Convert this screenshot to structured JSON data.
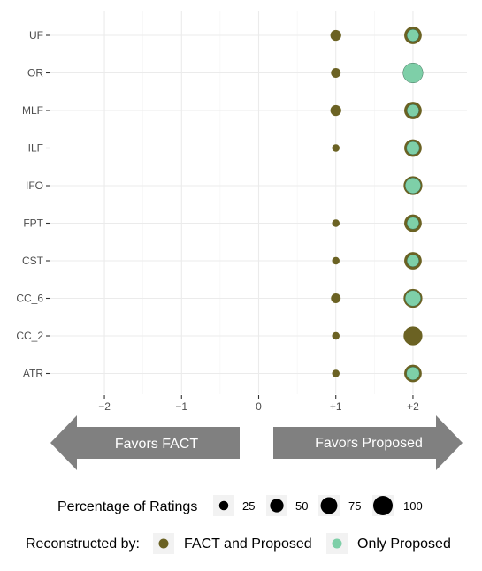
{
  "chart_data": {
    "type": "scatter",
    "categories": [
      "UF",
      "OR",
      "MLF",
      "ILF",
      "IFO",
      "FPT",
      "CST",
      "CC_6",
      "CC_2",
      "ATR"
    ],
    "x_ticks": [
      -2,
      -1,
      0,
      1,
      2
    ],
    "x_tick_labels": [
      "−2",
      "−1",
      "0",
      "+1",
      "+2"
    ],
    "xlim": [
      -2.7,
      2.7
    ],
    "grid": true,
    "series": [
      {
        "name": "FACT and Proposed",
        "color": "#6b6223",
        "points": [
          {
            "category": "UF",
            "x": 1,
            "pct": 20
          },
          {
            "category": "UF",
            "x": 2,
            "pct": 60
          },
          {
            "category": "OR",
            "x": 1,
            "pct": 15
          },
          {
            "category": "MLF",
            "x": 1,
            "pct": 20
          },
          {
            "category": "MLF",
            "x": 2,
            "pct": 60
          },
          {
            "category": "ILF",
            "x": 1,
            "pct": 8
          },
          {
            "category": "ILF",
            "x": 2,
            "pct": 60
          },
          {
            "category": "IFO",
            "x": 2,
            "pct": 70
          },
          {
            "category": "FPT",
            "x": 1,
            "pct": 8
          },
          {
            "category": "FPT",
            "x": 2,
            "pct": 60
          },
          {
            "category": "CST",
            "x": 1,
            "pct": 8
          },
          {
            "category": "CST",
            "x": 2,
            "pct": 60
          },
          {
            "category": "CC_6",
            "x": 1,
            "pct": 15
          },
          {
            "category": "CC_6",
            "x": 2,
            "pct": 70
          },
          {
            "category": "CC_2",
            "x": 1,
            "pct": 8
          },
          {
            "category": "CC_2",
            "x": 2,
            "pct": 70
          },
          {
            "category": "ATR",
            "x": 1,
            "pct": 8
          },
          {
            "category": "ATR",
            "x": 2,
            "pct": 60
          }
        ]
      },
      {
        "name": "Only Proposed",
        "color": "#7ecfa8",
        "points": [
          {
            "category": "UF",
            "x": 2,
            "pct": 25
          },
          {
            "category": "OR",
            "x": 2,
            "pct": 80
          },
          {
            "category": "MLF",
            "x": 2,
            "pct": 25
          },
          {
            "category": "ILF",
            "x": 2,
            "pct": 30
          },
          {
            "category": "IFO",
            "x": 2,
            "pct": 45
          },
          {
            "category": "FPT",
            "x": 2,
            "pct": 25
          },
          {
            "category": "CST",
            "x": 2,
            "pct": 25
          },
          {
            "category": "CC_6",
            "x": 2,
            "pct": 45
          },
          {
            "category": "ATR",
            "x": 2,
            "pct": 30
          }
        ]
      }
    ],
    "arrows": {
      "left": "Favors FACT",
      "right": "Favors Proposed",
      "color": "#808080"
    },
    "size_legend": {
      "title": "Percentage of Ratings",
      "values": [
        25,
        50,
        75,
        100
      ],
      "labels": [
        "25",
        "50",
        "75",
        "100"
      ]
    },
    "color_legend": {
      "title": "Reconstructed by:",
      "labels": [
        "FACT and Proposed",
        "Only Proposed"
      ]
    }
  }
}
